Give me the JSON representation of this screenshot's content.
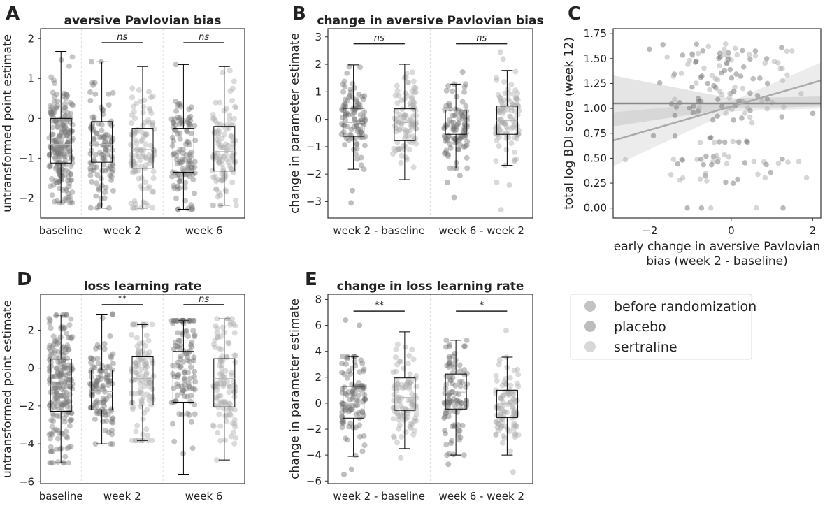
{
  "figure": {
    "panels": [
      {
        "letter": "A",
        "title": "aversive Pavlovian bias",
        "ylabel": "untransformed point estimate",
        "ylim": [
          -2.5,
          2.25
        ],
        "yticks": [
          -2,
          -1,
          0,
          1,
          2
        ],
        "group_labels": [
          "baseline",
          "week 2",
          "week 6"
        ],
        "boxes": [
          {
            "group": "baseline",
            "condition": "before randomization",
            "q1": -1.12,
            "median": -0.65,
            "q3": 0.0,
            "whisker_low": -2.12,
            "whisker_high": 1.68,
            "n": 220
          },
          {
            "group": "week 2",
            "condition": "placebo",
            "q1": -1.1,
            "median": -0.65,
            "q3": -0.08,
            "whisker_low": -2.25,
            "whisker_high": 1.42,
            "n": 110
          },
          {
            "group": "week 2",
            "condition": "sertraline",
            "q1": -1.25,
            "median": -0.78,
            "q3": -0.25,
            "whisker_low": -2.25,
            "whisker_high": 1.3,
            "n": 110
          },
          {
            "group": "week 6",
            "condition": "placebo",
            "q1": -1.35,
            "median": -0.97,
            "q3": -0.25,
            "whisker_low": -2.28,
            "whisker_high": 1.35,
            "n": 110
          },
          {
            "group": "week 6",
            "condition": "sertraline",
            "q1": -1.32,
            "median": -0.83,
            "q3": -0.2,
            "whisker_low": -2.18,
            "whisker_high": 1.3,
            "n": 110
          }
        ],
        "significance": [
          {
            "between": [
              "week 2 placebo",
              "week 2 sertraline"
            ],
            "label": "ns",
            "y": 1.9
          },
          {
            "between": [
              "week 6 placebo",
              "week 6 sertraline"
            ],
            "label": "ns",
            "y": 1.9
          }
        ]
      },
      {
        "letter": "B",
        "title": "change in aversive Pavlovian bias",
        "ylabel": "change in parameter estimate",
        "ylim": [
          -3.6,
          3.3
        ],
        "yticks": [
          -3,
          -2,
          -1,
          0,
          1,
          2,
          3
        ],
        "group_labels": [
          "week 2 - baseline",
          "week 6 - week 2"
        ],
        "boxes": [
          {
            "group": "week 2 - baseline",
            "condition": "placebo",
            "q1": -0.62,
            "median": -0.12,
            "q3": 0.4,
            "whisker_low": -1.82,
            "whisker_high": 1.98,
            "n": 100,
            "outliers": [
              -2.6,
              -3.05
            ]
          },
          {
            "group": "week 2 - baseline",
            "condition": "sertraline",
            "q1": -0.78,
            "median": -0.12,
            "q3": 0.38,
            "whisker_low": -2.2,
            "whisker_high": 2.0,
            "n": 100,
            "outliers": []
          },
          {
            "group": "week 6 - week 2",
            "condition": "placebo",
            "q1": -0.55,
            "median": -0.18,
            "q3": 0.33,
            "whisker_low": -1.78,
            "whisker_high": 1.28,
            "n": 100,
            "outliers": [
              -2.3,
              -2.85,
              -2.05,
              1.72
            ]
          },
          {
            "group": "week 6 - week 2",
            "condition": "sertraline",
            "q1": -0.55,
            "median": -0.05,
            "q3": 0.48,
            "whisker_low": -1.68,
            "whisker_high": 1.78,
            "n": 100,
            "outliers": [
              -2.4,
              -2.3,
              -3.3,
              2.45,
              2.2
            ]
          }
        ],
        "significance": [
          {
            "between": [
              "week 2 - baseline placebo",
              "week 2 - baseline sertraline"
            ],
            "label": "ns",
            "y": 2.75
          },
          {
            "between": [
              "week 6 - week 2 placebo",
              "week 6 - week 2 sertraline"
            ],
            "label": "ns",
            "y": 2.75
          }
        ]
      },
      {
        "letter": "C",
        "type": "scatter",
        "xlabel_lines": [
          "early change in aversive Pavlovian",
          "bias (week 2 - baseline)"
        ],
        "ylabel": "total log BDI score (week 12)",
        "xlim": [
          -2.9,
          2.2
        ],
        "ylim": [
          -0.1,
          1.8
        ],
        "xticks": [
          -2,
          0,
          2
        ],
        "yticks": [
          0.0,
          0.25,
          0.5,
          0.75,
          1.0,
          1.25,
          1.5,
          1.75
        ],
        "ytick_labels": [
          "0.00",
          "0.25",
          "0.50",
          "0.75",
          "1.00",
          "1.25",
          "1.50",
          "1.75"
        ],
        "regression_lines": [
          {
            "condition": "placebo",
            "slope": 0.0,
            "intercept": 1.05,
            "color": "#888888",
            "ci_low": [
              0.82,
              1.02
            ],
            "ci_high": [
              1.33,
              1.12
            ]
          },
          {
            "condition": "sertraline",
            "slope": 0.118,
            "intercept": 1.02,
            "color": "#aaaaaa",
            "ci_low": [
              0.42,
              1.0
            ],
            "ci_high": [
              0.96,
              1.46
            ]
          }
        ],
        "n_points": 180
      },
      {
        "letter": "D",
        "title": "loss learning rate",
        "ylabel": "untransformed point estimate",
        "ylim": [
          -6.1,
          3.9
        ],
        "yticks": [
          -6,
          -4,
          -2,
          0,
          2
        ],
        "group_labels": [
          "baseline",
          "week 2",
          "week 6"
        ],
        "boxes": [
          {
            "group": "baseline",
            "condition": "before randomization",
            "q1": -2.28,
            "median": -0.9,
            "q3": 0.48,
            "whisker_low": -5.0,
            "whisker_high": 2.8,
            "n": 220
          },
          {
            "group": "week 2",
            "condition": "placebo",
            "q1": -2.2,
            "median": -1.25,
            "q3": -0.1,
            "whisker_low": -4.0,
            "whisker_high": 2.85,
            "n": 110
          },
          {
            "group": "week 2",
            "condition": "sertraline",
            "q1": -1.95,
            "median": -0.55,
            "q3": 0.6,
            "whisker_low": -3.82,
            "whisker_high": 2.3,
            "n": 110
          },
          {
            "group": "week 6",
            "condition": "placebo",
            "q1": -1.8,
            "median": 0.0,
            "q3": 0.88,
            "whisker_low": -5.6,
            "whisker_high": 2.5,
            "n": 110
          },
          {
            "group": "week 6",
            "condition": "sertraline",
            "q1": -2.05,
            "median": -0.55,
            "q3": 0.5,
            "whisker_low": -4.85,
            "whisker_high": 2.6,
            "n": 110
          }
        ],
        "significance": [
          {
            "between": [
              "week 2 placebo",
              "week 2 sertraline"
            ],
            "label": "**",
            "y": 3.35
          },
          {
            "between": [
              "week 6 placebo",
              "week 6 sertraline"
            ],
            "label": "ns",
            "y": 3.35
          }
        ]
      },
      {
        "letter": "E",
        "title": "change in loss learning rate",
        "ylabel": "change in parameter estimate",
        "ylim": [
          -6.2,
          8.4
        ],
        "yticks": [
          -6,
          -4,
          -2,
          0,
          2,
          4,
          6,
          8
        ],
        "group_labels": [
          "week 2 - baseline",
          "week 6 - week 2"
        ],
        "boxes": [
          {
            "group": "week 2 - baseline",
            "condition": "placebo",
            "q1": -1.15,
            "median": -0.05,
            "q3": 1.3,
            "whisker_low": -4.1,
            "whisker_high": 3.6,
            "n": 100,
            "outliers": [
              -5.5,
              -5.1,
              6.4,
              6.0
            ]
          },
          {
            "group": "week 2 - baseline",
            "condition": "sertraline",
            "q1": -0.55,
            "median": 0.45,
            "q3": 1.95,
            "whisker_low": -3.5,
            "whisker_high": 5.5,
            "n": 100,
            "outliers": [
              -4.2
            ]
          },
          {
            "group": "week 6 - week 2",
            "condition": "placebo",
            "q1": -0.45,
            "median": 0.85,
            "q3": 2.25,
            "whisker_low": -4.0,
            "whisker_high": 4.85,
            "n": 100,
            "outliers": [
              -4.7
            ]
          },
          {
            "group": "week 6 - week 2",
            "condition": "sertraline",
            "q1": -1.1,
            "median": -0.05,
            "q3": 1.0,
            "whisker_low": -4.0,
            "whisker_high": 3.55,
            "n": 100,
            "outliers": [
              -5.3,
              5.6
            ]
          }
        ],
        "significance": [
          {
            "between": [
              "week 2 - baseline placebo",
              "week 2 - baseline sertraline"
            ],
            "label": "**",
            "y": 7.1
          },
          {
            "between": [
              "week 6 - week 2 placebo",
              "week 6 - week 2 sertraline"
            ],
            "label": "*",
            "y": 7.1
          }
        ]
      }
    ],
    "legend": {
      "placement": "lower-right",
      "entries": [
        {
          "label": "before randomization",
          "color": "#7a7a7a",
          "opacity": 0.45
        },
        {
          "label": "placebo",
          "color": "#6a6a6a",
          "opacity": 0.45
        },
        {
          "label": "sertraline",
          "color": "#a8a8a8",
          "opacity": 0.45
        }
      ]
    },
    "colors": {
      "before randomization": "#7a7a7a",
      "placebo": "#6f6f6f",
      "sertraline": "#a9a9a9",
      "median_line": "#b5b5b5",
      "divider": "#dddddd",
      "axes": "#333333"
    }
  }
}
